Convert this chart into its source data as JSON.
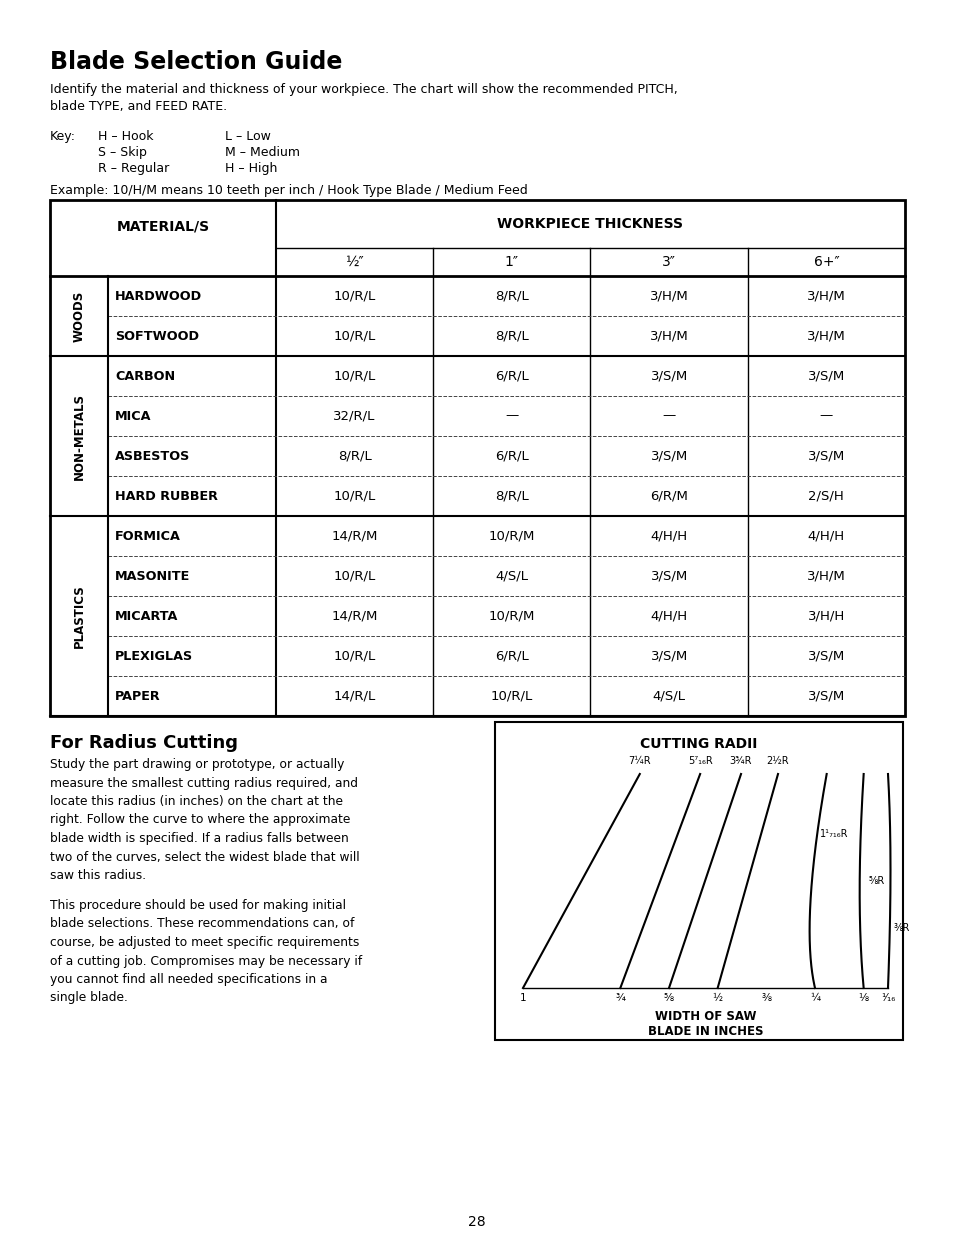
{
  "title": "Blade Selection Guide",
  "intro_text": "Identify the material and thickness of your workpiece. The chart will show the recommended PITCH,\nblade TYPE, and FEED RATE.",
  "key_label": "Key:",
  "key_col1": [
    "H – Hook",
    "S – Skip",
    "R – Regular"
  ],
  "key_col2": [
    "L – Low",
    "M – Medium",
    "H – High"
  ],
  "example_text": "Example: 10/H/M means 10 teeth per inch / Hook Type Blade / Medium Feed",
  "table_header_mat": "MATERIAL/S",
  "table_header_thick": "WORKPIECE THICKNESS",
  "thickness_cols": [
    "½″",
    "1″",
    "3″",
    "6+″"
  ],
  "categories": [
    {
      "group": "WOODS",
      "material": "HARDWOOD",
      "values": [
        "10/R/L",
        "8/R/L",
        "3/H/M",
        "3/H/M"
      ]
    },
    {
      "group": "WOODS",
      "material": "SOFTWOOD",
      "values": [
        "10/R/L",
        "8/R/L",
        "3/H/M",
        "3/H/M"
      ]
    },
    {
      "group": "NON-METALS",
      "material": "CARBON",
      "values": [
        "10/R/L",
        "6/R/L",
        "3/S/M",
        "3/S/M"
      ]
    },
    {
      "group": "NON-METALS",
      "material": "MICA",
      "values": [
        "32/R/L",
        "—",
        "—",
        "—"
      ]
    },
    {
      "group": "NON-METALS",
      "material": "ASBESTOS",
      "values": [
        "8/R/L",
        "6/R/L",
        "3/S/M",
        "3/S/M"
      ]
    },
    {
      "group": "NON-METALS",
      "material": "HARD RUBBER",
      "values": [
        "10/R/L",
        "8/R/L",
        "6/R/M",
        "2/S/H"
      ]
    },
    {
      "group": "PLASTICS",
      "material": "FORMICA",
      "values": [
        "14/R/M",
        "10/R/M",
        "4/H/H",
        "4/H/H"
      ]
    },
    {
      "group": "PLASTICS",
      "material": "MASONITE",
      "values": [
        "10/R/L",
        "4/S/L",
        "3/S/M",
        "3/H/M"
      ]
    },
    {
      "group": "PLASTICS",
      "material": "MICARTA",
      "values": [
        "14/R/M",
        "10/R/M",
        "4/H/H",
        "3/H/H"
      ]
    },
    {
      "group": "PLASTICS",
      "material": "PLEXIGLAS",
      "values": [
        "10/R/L",
        "6/R/L",
        "3/S/M",
        "3/S/M"
      ]
    },
    {
      "group": "PLASTICS",
      "material": "PAPER",
      "values": [
        "14/R/L",
        "10/R/L",
        "4/S/L",
        "3/S/M"
      ]
    }
  ],
  "radius_title": "CUTTING RADII",
  "top_curve_labels": [
    "7¼R",
    "5⁷₁₆R",
    "3¾R",
    "2½R"
  ],
  "right_curve_labels": [
    "1¹₇₁₆R",
    "⅝R",
    "⅜R"
  ],
  "x_axis_labels": [
    "1",
    "¾",
    "⅝",
    "½",
    "⅜",
    "¼",
    "⅛",
    "¹⁄₁₆"
  ],
  "x_axis_label": "WIDTH OF SAW\nBLADE IN INCHES",
  "for_radius_heading": "For Radius Cutting",
  "radius_para1": "Study the part drawing or prototype, or actually\nmeasure the smallest cutting radius required, and\nlocate this radius (in inches) on the chart at the\nright. Follow the curve to where the approximate\nblade width is specified. If a radius falls between\ntwo of the curves, select the widest blade that will\nsaw this radius.",
  "radius_para2": "This procedure should be used for making initial\nblade selections. These recommendations can, of\ncourse, be adjusted to meet specific requirements\nof a cutting job. Compromises may be necessary if\nyou cannot find all needed specifications in a\nsingle blade.",
  "page_number": "28"
}
